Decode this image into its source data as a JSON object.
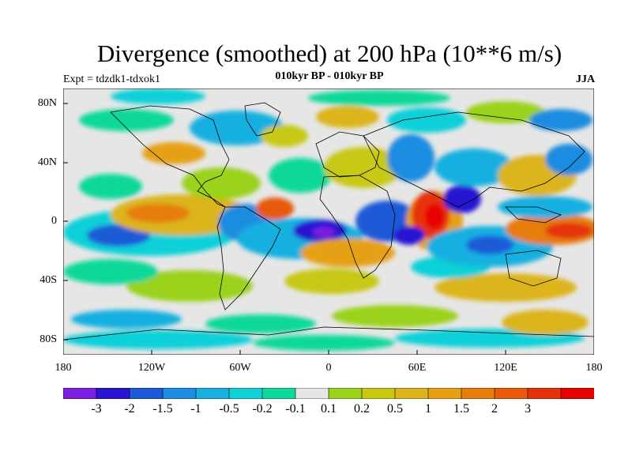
{
  "title": "Divergence (smoothed) at 200 hPa (10**6 m/s)",
  "subtitle": "010kyr BP - 010kyr BP",
  "expt_label": "Expt = tdzdk1-tdxok1",
  "season": "JJA",
  "axes": {
    "lat_ticks": [
      "80N",
      "40N",
      "0",
      "40S",
      "80S"
    ],
    "lon_ticks": [
      "180",
      "120W",
      "60W",
      "0",
      "60E",
      "120E",
      "180"
    ]
  },
  "colorbar": {
    "colors": [
      "#7a1ee0",
      "#2814d2",
      "#1e5ad8",
      "#1e8ce0",
      "#18b0e0",
      "#10d0d8",
      "#10d89a",
      "#e6e6e6",
      "#9ad21e",
      "#c8c814",
      "#dcb41e",
      "#e6a014",
      "#e67d0a",
      "#e65a0a",
      "#e6320a",
      "#e60000"
    ],
    "labels": [
      "-3",
      "-2",
      "-1.5",
      "-1",
      "-0.5",
      "-0.2",
      "-0.1",
      "0.1",
      "0.2",
      "0.5",
      "1",
      "1.5",
      "2",
      "3"
    ]
  }
}
